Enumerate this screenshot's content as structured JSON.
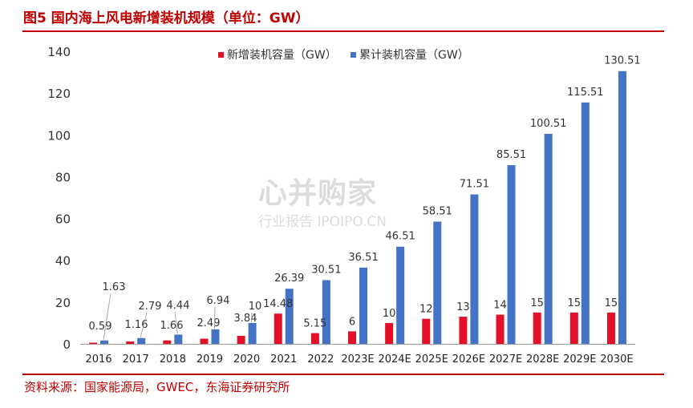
{
  "title": "图5  国内海上风电新增装机规模（单位：GW）",
  "source": "资料来源：国家能源局，GWEC，东海证券研究所",
  "watermark": {
    "main": "心并购家",
    "sub": "行业报告 IPOIPO.CN"
  },
  "colors": {
    "accent": "#C00000",
    "series_new": "#E3102A",
    "series_cum": "#4472C4"
  },
  "chart_data": {
    "type": "bar",
    "title": "",
    "xlabel": "",
    "ylabel": "",
    "ylim": [
      0,
      140
    ],
    "yticks": [
      0,
      20,
      40,
      60,
      80,
      100,
      120,
      140
    ],
    "grid": false,
    "legend_position": "top",
    "categories": [
      "2016",
      "2017",
      "2018",
      "2019",
      "2020",
      "2021",
      "2022",
      "2023E",
      "2024E",
      "2025E",
      "2026E",
      "2027E",
      "2028E",
      "2029E",
      "2030E"
    ],
    "series": [
      {
        "name": "新增装机容量（GW）",
        "values": [
          0.59,
          1.16,
          1.66,
          2.49,
          3.84,
          14.48,
          5.15,
          6,
          10,
          12,
          13,
          14,
          15,
          15,
          15
        ],
        "labels": [
          "0.59",
          "1.16",
          "1.66",
          "2.49",
          "3.84",
          "14.48",
          "5.15",
          "6",
          "10",
          "12",
          "13",
          "14",
          "15",
          "15",
          "15"
        ]
      },
      {
        "name": "累计装机容量（GW）",
        "values": [
          1.63,
          2.79,
          4.44,
          6.94,
          10,
          26.39,
          30.51,
          36.51,
          46.51,
          58.51,
          71.51,
          85.51,
          100.51,
          115.51,
          130.51
        ],
        "labels": [
          "1.63",
          "2.79",
          "4.44",
          "6.94",
          "10",
          "26.39",
          "30.51",
          "36.51",
          "46.51",
          "58.51",
          "71.51",
          "85.51",
          "100.51",
          "115.51",
          "130.51"
        ]
      }
    ]
  }
}
